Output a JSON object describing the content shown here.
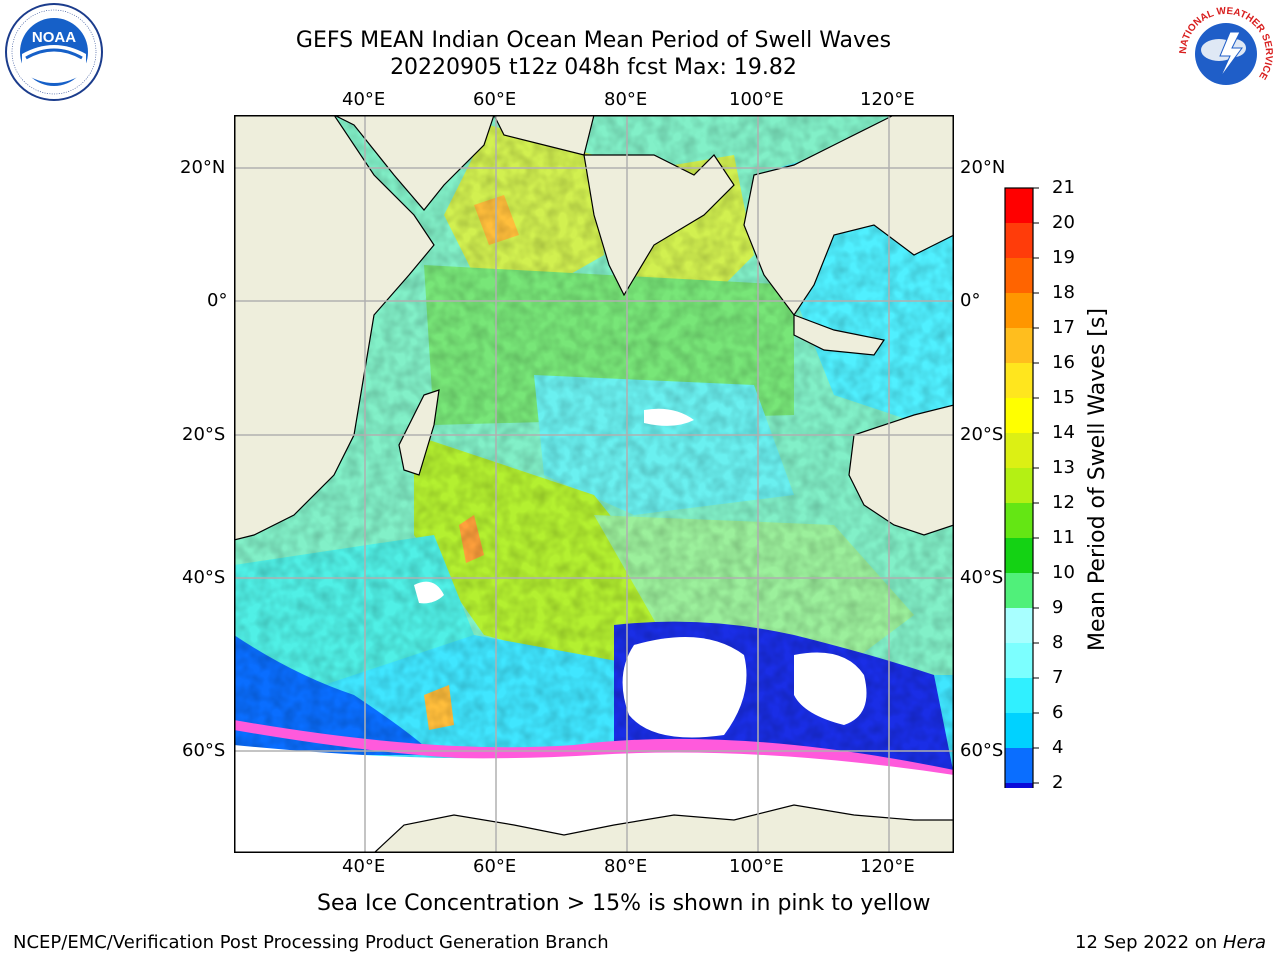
{
  "header": {
    "title": "GEFS MEAN Indian Ocean Mean Period of Swell Waves",
    "subtitle": "20220905 t12z 048h fcst   Max: 19.82"
  },
  "logos": {
    "left": "NOAA",
    "left_ring_text": "NATIONAL OCEANIC AND ATMOSPHERIC ADMINISTRATION · U.S. DEPARTMENT OF COMMERCE",
    "right_ring_text": "NATIONAL WEATHER SERVICE"
  },
  "map": {
    "lon_labels": [
      "40°E",
      "60°E",
      "80°E",
      "100°E",
      "120°E"
    ],
    "lat_labels": [
      "20°N",
      "0°",
      "20°S",
      "40°S",
      "60°S"
    ]
  },
  "colorbar": {
    "label": "Mean Period of Swell Waves [s]",
    "ticks": [
      "2",
      "4",
      "6",
      "7",
      "8",
      "9",
      "10",
      "11",
      "12",
      "13",
      "14",
      "15",
      "16",
      "17",
      "18",
      "19",
      "20",
      "21"
    ],
    "colors": [
      "#0a0ad8",
      "#0a6eff",
      "#00d2ff",
      "#30f0ff",
      "#7cffff",
      "#a8ffff",
      "#50f07a",
      "#14d214",
      "#64e614",
      "#b4f014",
      "#dcf014",
      "#ffff00",
      "#ffe61e",
      "#ffbe1e",
      "#ff9600",
      "#ff6400",
      "#ff3c0a",
      "#ff0000"
    ],
    "extend_color": "#0000b4"
  },
  "caption": "Sea Ice Concentration > 15% is shown in pink to yellow",
  "footer": {
    "left": "NCEP/EMC/Verification Post Processing Product Generation Branch",
    "right_prefix": "12 Sep 2022 on ",
    "right_italic": "Hera"
  }
}
